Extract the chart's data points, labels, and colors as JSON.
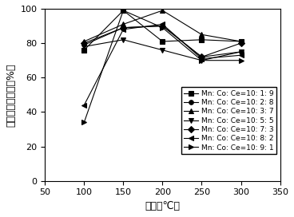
{
  "x": [
    100,
    150,
    200,
    250,
    300
  ],
  "series": [
    {
      "label": "Mn: Co: Ce=10: 1: 9",
      "values": [
        76,
        99,
        81,
        82,
        81
      ],
      "marker": "s",
      "mfc": "black"
    },
    {
      "label": "Mn: Co: Ce=10: 2: 8",
      "values": [
        79,
        89,
        90,
        72,
        75
      ],
      "marker": "o",
      "mfc": "black"
    },
    {
      "label": "Mn: Co: Ce=10: 3: 7",
      "values": [
        81,
        91,
        99,
        85,
        81
      ],
      "marker": "^",
      "mfc": "black"
    },
    {
      "label": "Mn: Co: Ce=10: 5: 5",
      "values": [
        78,
        82,
        76,
        70,
        75
      ],
      "marker": "v",
      "mfc": "black"
    },
    {
      "label": "Mn: Co: Ce=10: 7: 3",
      "values": [
        80,
        89,
        90,
        72,
        80
      ],
      "marker": "D",
      "mfc": "black"
    },
    {
      "label": "Mn: Co: Ce=10: 8: 2",
      "values": [
        44,
        88,
        91,
        71,
        73
      ],
      "marker": "<",
      "mfc": "black"
    },
    {
      "label": "Mn: Co: Ce=10: 9: 1",
      "values": [
        34,
        99,
        89,
        70,
        70
      ],
      "marker": ">",
      "mfc": "black"
    }
  ],
  "xlabel": "温度（℃）",
  "ylabel": "氨氧化物还原率（%）",
  "xlim": [
    50,
    350
  ],
  "ylim": [
    0,
    100
  ],
  "xticks": [
    50,
    100,
    150,
    200,
    250,
    300,
    350
  ],
  "yticks": [
    0,
    20,
    40,
    60,
    80,
    100
  ],
  "axis_fontsize": 9,
  "legend_fontsize": 6.5,
  "tick_fontsize": 8
}
